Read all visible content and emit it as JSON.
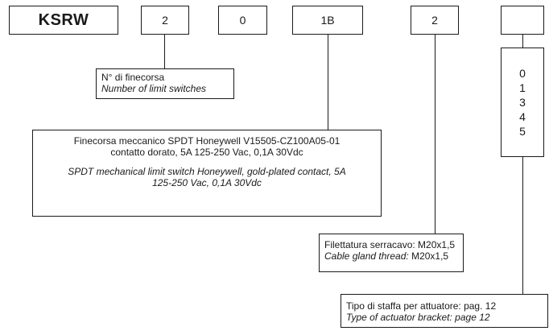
{
  "codes": {
    "model": "KSRW",
    "c1": "2",
    "c2": "0",
    "c3": "1B",
    "c4": "2",
    "c5": ""
  },
  "limit_switches": {
    "it": "N° di finecorsa",
    "en": "Number of limit switches"
  },
  "switch_desc": {
    "it_line1": "Finecorsa meccanico SPDT Honeywell V15505-CZ100A05-01",
    "it_line2": "contatto dorato, 5A 125-250 Vac, 0,1A 30Vdc",
    "en_line1": "SPDT mechanical limit switch Honeywell, gold-plated contact, 5A",
    "en_line2": "125-250 Vac, 0,1A 30Vdc"
  },
  "bracket_options": [
    "0",
    "1",
    "3",
    "4",
    "5"
  ],
  "cable_gland": {
    "it": "Filettatura serracavo: M20x1,5",
    "en_prefix": "Cable gland thread: ",
    "en_value": "M20x1,5"
  },
  "bracket": {
    "it": "Tipo di staffa per attuatore: pag. 12",
    "en": "Type of actuator bracket: page 12"
  }
}
